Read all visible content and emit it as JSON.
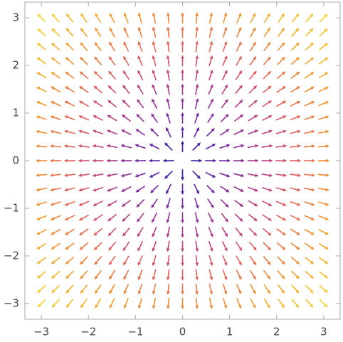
{
  "chart_data": {
    "type": "vector_field",
    "x": [
      -3,
      -2.7,
      -2.4,
      -2.1,
      -1.8,
      -1.5,
      -1.2,
      -0.9,
      -0.6,
      -0.3,
      0,
      0.3,
      0.6,
      0.9,
      1.2,
      1.5,
      1.8,
      2.1,
      2.4,
      2.7,
      3
    ],
    "y": [
      -3,
      -2.7,
      -2.4,
      -2.1,
      -1.8,
      -1.5,
      -1.2,
      -0.9,
      -0.6,
      -0.3,
      0,
      0.3,
      0.6,
      0.9,
      1.2,
      1.5,
      1.8,
      2.1,
      2.4,
      2.7,
      3
    ],
    "colors": [
      "#24169c",
      "#5a23a6",
      "#8f2f9a",
      "#c04380",
      "#e3625a",
      "#f08a34",
      "#f6b52a",
      "#f8d22a"
    ],
    "xlim": [
      -3.35,
      3.35
    ],
    "ylim": [
      -3.33,
      3.33
    ],
    "xticks": [
      {
        "value": -3,
        "label": "−3"
      },
      {
        "value": -2,
        "label": "−2"
      },
      {
        "value": -1,
        "label": "−1"
      },
      0,
      1,
      2,
      3
    ],
    "yticks": [
      {
        "value": -3,
        "label": "−3"
      },
      {
        "value": -2,
        "label": "−2"
      },
      {
        "value": -1,
        "label": "−1"
      },
      0,
      1,
      2,
      3
    ]
  }
}
